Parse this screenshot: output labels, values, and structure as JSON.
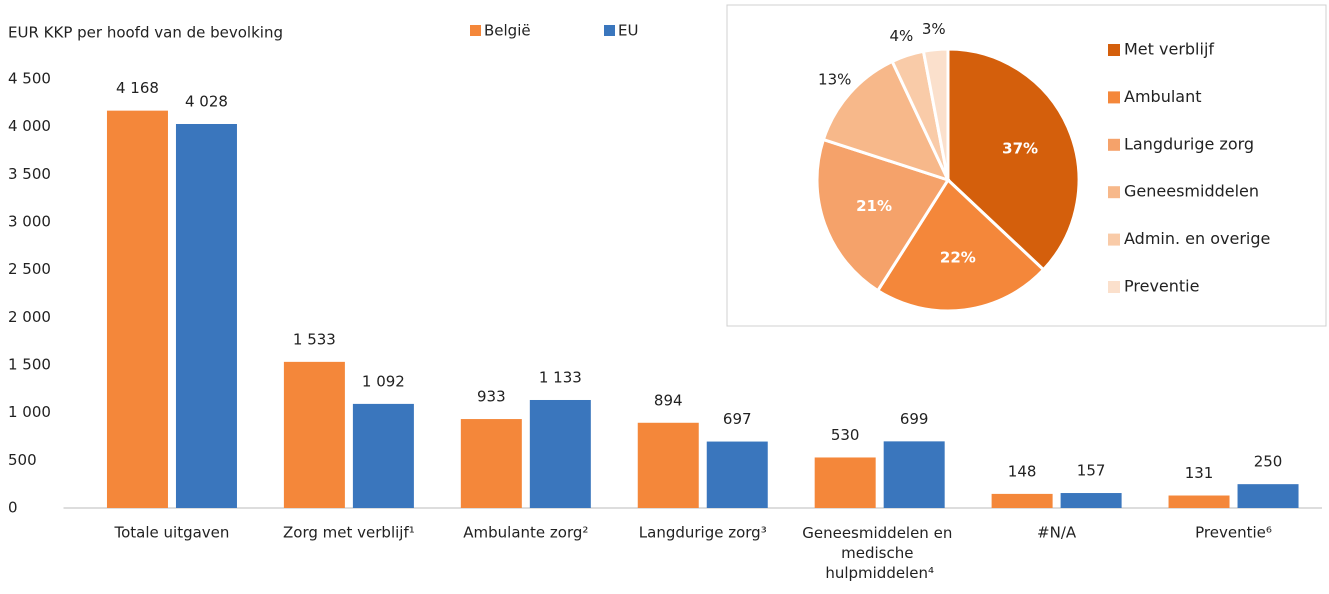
{
  "chart_data": [
    {
      "type": "bar",
      "y_label": "EUR KKP per hoofd van de bevolking",
      "categories": [
        "Totale uitgaven",
        "Zorg met verblijf¹",
        "Ambulante zorg²",
        "Langdurige zorg³",
        "Geneesmiddelen en medische hulpmiddelen⁴",
        "#N/A",
        "Preventie⁶"
      ],
      "series": [
        {
          "name": "België",
          "color": "#f4873a",
          "values": [
            4168,
            1533,
            933,
            894,
            530,
            148,
            131
          ],
          "value_labels": [
            "4 168",
            "1 533",
            "933",
            "894",
            "530",
            "148",
            "131"
          ]
        },
        {
          "name": "EU",
          "color": "#3a76bd",
          "values": [
            4028,
            1092,
            1133,
            697,
            699,
            157,
            250
          ],
          "value_labels": [
            "4 028",
            "1 092",
            "1 133",
            "697",
            "699",
            "157",
            "250"
          ]
        }
      ],
      "ylim": [
        0,
        4500
      ],
      "yticks": [
        0,
        500,
        {
          "value": 1000,
          "label": "1 000"
        },
        {
          "value": 1500,
          "label": "1 500"
        },
        {
          "value": 2000,
          "label": "2 000"
        },
        {
          "value": 2500,
          "label": "2 500"
        },
        {
          "value": 3000,
          "label": "3 000"
        },
        {
          "value": 3500,
          "label": "3 500"
        },
        {
          "value": 4000,
          "label": "4 000"
        },
        {
          "value": 4500,
          "label": "4 500"
        }
      ],
      "grid": false
    },
    {
      "type": "pie",
      "categories": [
        "Met verblijf",
        "Ambulant",
        "Langdurige zorg",
        "Geneesmiddelen",
        "Admin. en overige",
        "Preventie"
      ],
      "values": [
        37,
        22,
        21,
        13,
        4,
        3
      ],
      "value_labels": [
        "37%",
        "22%",
        "21%",
        "13%",
        "4%",
        "3%"
      ],
      "colors": [
        "#d45f0c",
        "#f4873a",
        "#f5a26a",
        "#f7b88a",
        "#f9cba8",
        "#fbe0cc"
      ]
    }
  ]
}
